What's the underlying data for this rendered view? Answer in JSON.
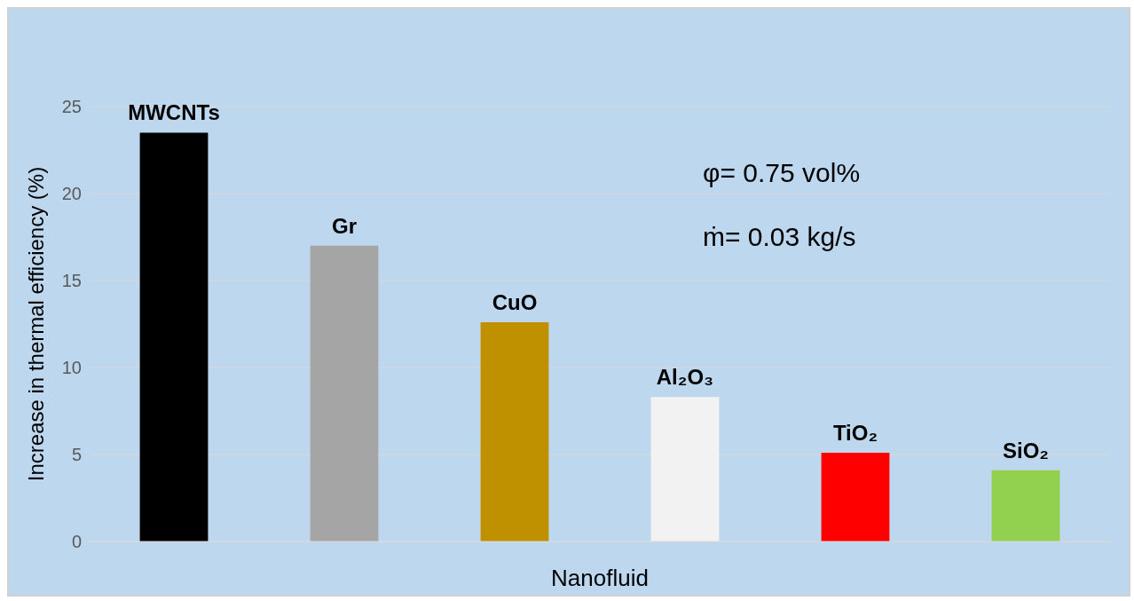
{
  "chart_data": {
    "type": "bar",
    "xlabel": "Nanofluid",
    "ylabel": "Increase in thermal efficiency (%)",
    "categories": [
      "MWCNTs",
      "Gr",
      "CuO",
      "Al₂O₃",
      "TiO₂",
      "SiO₂"
    ],
    "values": [
      23.5,
      17,
      12.6,
      8.3,
      5.1,
      4.1
    ],
    "colors": [
      "#000000",
      "#a5a5a5",
      "#bf9000",
      "#f2f2f2",
      "#ff0000",
      "#92d050"
    ],
    "ylim": [
      0,
      25
    ],
    "yticks": [
      0,
      5,
      10,
      15,
      20,
      25
    ],
    "grid": "y",
    "annotations": [
      "φ= 0.75 vol%",
      "ṁ= 0.03 kg/s"
    ]
  }
}
